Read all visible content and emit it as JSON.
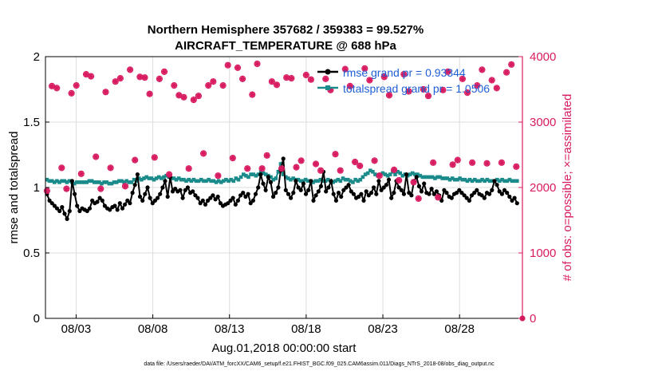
{
  "chart_data": {
    "type": "line",
    "title": "Northern Hemisphere 357682 / 359383 = 99.527%",
    "subtitle": "AIRCRAFT_TEMPERATURE @ 688 hPa",
    "xlabel": "Aug.01,2018 00:00:00 start",
    "ylabel": "rmse and totalspread",
    "ylabel_right": "# of obs: o=possible; ×=assimilated",
    "footer": "data file: /Users/raeder/DAI/ATM_forcXX/CAM6_setup/f.e21.FHIST_BGC.f09_025.CAM6assim.011/Diags_NTrS_2018-08/obs_diag_output.nc",
    "x_tick_labels": [
      "08/03",
      "08/08",
      "08/13",
      "08/18",
      "08/23",
      "08/28"
    ],
    "x_tick_days": [
      3,
      8,
      13,
      18,
      23,
      28
    ],
    "xlim": [
      1,
      32.1
    ],
    "ylim": [
      0,
      2
    ],
    "y_ticks": [
      0,
      0.5,
      1,
      1.5,
      2
    ],
    "y_tick_labels": [
      "0",
      "0.5",
      "1",
      "1.5",
      "2"
    ],
    "ylim_right": [
      0,
      4000
    ],
    "y_ticks_right": [
      0,
      1000,
      2000,
      3000,
      4000
    ],
    "y_tick_labels_right": [
      "0",
      "1000",
      "2000",
      "3000",
      "4000"
    ],
    "grid": true,
    "legend_position": "top-right",
    "colors": {
      "rmse": "#000000",
      "spread": "#1a8a8a",
      "obs": "#d81b60",
      "legend_text": "#1f5fd6",
      "right_axis": "#d81b60"
    },
    "series": [
      {
        "name": "rmse grand pr = 0.93344",
        "color": "#000000",
        "marker": "circle",
        "values": [
          0.95,
          0.9,
          0.88,
          0.86,
          0.84,
          0.82,
          0.85,
          0.8,
          0.76,
          0.82,
          1.05,
          0.95,
          0.86,
          0.82,
          0.84,
          0.83,
          0.82,
          0.84,
          0.9,
          0.88,
          0.89,
          0.92,
          0.9,
          0.86,
          0.84,
          0.83,
          0.85,
          0.86,
          0.83,
          0.88,
          0.84,
          0.87,
          0.9,
          0.88,
          0.96,
          1.02,
          1.1,
          0.93,
          0.9,
          0.95,
          1.0,
          0.92,
          0.88,
          0.9,
          0.92,
          0.95,
          1.0,
          1.05,
          0.93,
          1.08,
          0.97,
          0.99,
          0.97,
          0.98,
          0.92,
          0.98,
          1.0,
          0.96,
          0.97,
          0.94,
          0.92,
          0.88,
          0.9,
          0.87,
          0.9,
          0.92,
          0.94,
          0.91,
          0.93,
          0.88,
          0.86,
          0.87,
          0.88,
          0.9,
          0.92,
          0.87,
          0.9,
          0.94,
          0.96,
          0.93,
          0.95,
          0.88,
          0.9,
          0.95,
          1.0,
          1.1,
          1.03,
          0.98,
          1.08,
          1.04,
          0.93,
          0.96,
          1.0,
          1.13,
          1.22,
          0.98,
          0.95,
          0.92,
          0.96,
          1.05,
          1.0,
          0.98,
          1.03,
          0.95,
          0.98,
          1.05,
          0.9,
          0.94,
          0.97,
          1.01,
          1.12,
          0.97,
          1.0,
          1.05,
          0.95,
          0.9,
          0.96,
          0.93,
          0.98,
          1.0,
          1.02,
          0.97,
          0.95,
          0.92,
          0.93,
          0.95,
          0.9,
          0.97,
          0.94,
          0.96,
          1.0,
          0.95,
          1.05,
          0.98,
          1.0,
          1.02,
          1.06,
          0.92,
          0.96,
          1.05,
          1.0,
          0.98,
          0.95,
          1.1,
          0.96,
          0.94,
          1.05,
          1.08,
          1.01,
          0.97,
          1.03,
          0.96,
          0.95,
          0.99,
          0.95,
          0.97,
          0.94,
          0.9,
          0.98,
          0.96,
          0.93,
          0.92,
          0.95,
          0.96,
          0.98,
          0.96,
          0.94,
          0.92,
          0.9,
          0.94,
          0.96,
          0.98,
          0.95,
          0.94,
          0.92,
          0.96,
          0.95,
          0.98,
          1.05,
          1.02,
          0.97,
          0.95,
          0.98,
          0.96,
          0.93,
          0.9,
          0.92,
          0.88
        ]
      },
      {
        "name": "totalspread grand pr = 1.0506",
        "color": "#1a8a8a",
        "marker": "square",
        "values": [
          1.06,
          1.05,
          1.05,
          1.04,
          1.05,
          1.04,
          1.05,
          1.05,
          1.04,
          1.05,
          1.04,
          1.03,
          1.04,
          1.04,
          1.04,
          1.04,
          1.04,
          1.05,
          1.05,
          1.04,
          1.04,
          1.04,
          1.03,
          1.04,
          1.04,
          1.03,
          1.03,
          1.04,
          1.04,
          1.05,
          1.05,
          1.04,
          1.05,
          1.04,
          1.04,
          1.06,
          1.05,
          1.07,
          1.06,
          1.07,
          1.08,
          1.07,
          1.07,
          1.06,
          1.07,
          1.08,
          1.07,
          1.08,
          1.09,
          1.08,
          1.07,
          1.07,
          1.06,
          1.07,
          1.06,
          1.06,
          1.05,
          1.06,
          1.05,
          1.06,
          1.05,
          1.05,
          1.06,
          1.05,
          1.05,
          1.06,
          1.05,
          1.05,
          1.04,
          1.05,
          1.04,
          1.05,
          1.06,
          1.05,
          1.06,
          1.05,
          1.07,
          1.06,
          1.08,
          1.1,
          1.09,
          1.08,
          1.1,
          1.1,
          1.09,
          1.1,
          1.12,
          1.11,
          1.1,
          1.09,
          1.08,
          1.06,
          1.07,
          1.12,
          1.18,
          1.1,
          1.08,
          1.07,
          1.06,
          1.07,
          1.06,
          1.06,
          1.05,
          1.05,
          1.06,
          1.05,
          1.05,
          1.04,
          1.05,
          1.05,
          1.06,
          1.05,
          1.05,
          1.06,
          1.05,
          1.04,
          1.05,
          1.06,
          1.05,
          1.07,
          1.06,
          1.06,
          1.05,
          1.04,
          1.06,
          1.05,
          1.06,
          1.08,
          1.1,
          1.11,
          1.13,
          1.12,
          1.1,
          1.09,
          1.1,
          1.11,
          1.1,
          1.09,
          1.1,
          1.12,
          1.1,
          1.12,
          1.11,
          1.09,
          1.1,
          1.09,
          1.1,
          1.11,
          1.1,
          1.1,
          1.09,
          1.08,
          1.08,
          1.08,
          1.08,
          1.08,
          1.07,
          1.08,
          1.08,
          1.07,
          1.07,
          1.07,
          1.06,
          1.07,
          1.06,
          1.06,
          1.07,
          1.06,
          1.06,
          1.05,
          1.06,
          1.05,
          1.06,
          1.05,
          1.05,
          1.06,
          1.05,
          1.06,
          1.05,
          1.05,
          1.05,
          1.06,
          1.05,
          1.06,
          1.05,
          1.05,
          1.06,
          1.05,
          1.05,
          1.05
        ]
      },
      {
        "name": "# of obs possible / assimilated",
        "color": "#d81b60",
        "marker": "asterisk",
        "axis": "right",
        "values": [
          1950,
          3550,
          3520,
          2300,
          1980,
          3440,
          3560,
          2210,
          3730,
          3700,
          2470,
          1980,
          3460,
          2300,
          3620,
          3670,
          2020,
          3800,
          2420,
          3690,
          3680,
          3430,
          2460,
          3660,
          3770,
          2200,
          3560,
          3410,
          3380,
          2290,
          3340,
          3400,
          2520,
          3560,
          3620,
          2180,
          3560,
          3870,
          2450,
          3830,
          3660,
          2290,
          3420,
          3890,
          2290,
          2490,
          3620,
          3570,
          2290,
          3680,
          3670,
          2310,
          2410,
          3720,
          3650,
          2360,
          2260,
          3660,
          3490,
          2510,
          2260,
          3810,
          3550,
          2390,
          2330,
          3820,
          3640,
          2410,
          2180,
          3690,
          3410,
          2270,
          2110,
          3730,
          3470,
          2080,
          1830,
          3500,
          3400,
          2380,
          1850,
          3490,
          3770,
          2350,
          2420,
          3660,
          3450,
          2380,
          3560,
          3800,
          2370,
          3640,
          3520,
          2380,
          3760,
          3880,
          2320
        ]
      }
    ]
  }
}
